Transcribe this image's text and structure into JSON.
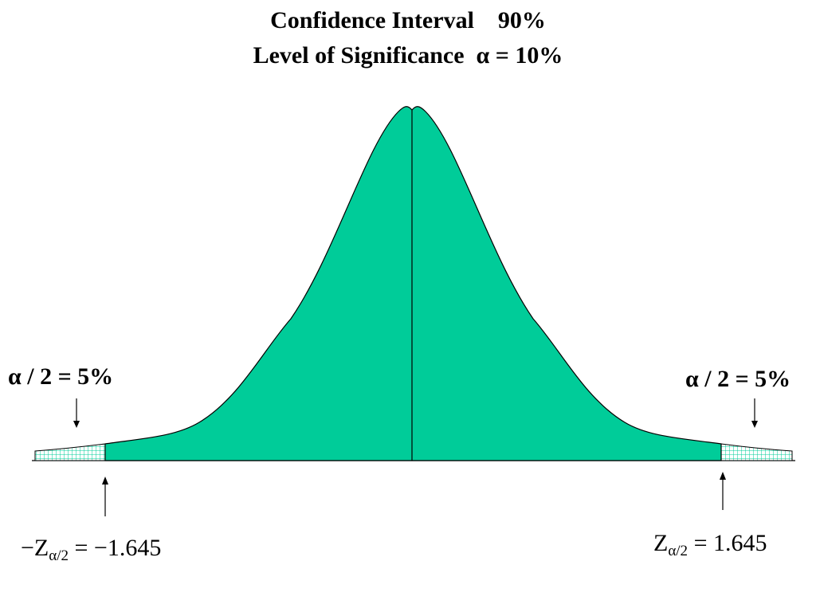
{
  "title": {
    "line1": "Confidence Interval    90%",
    "line2": "Level of Significance  α = 10%"
  },
  "left_tail": {
    "label": "α / 2 = 5%",
    "z_prefix": "−Z",
    "z_sub": "α/2",
    "z_value": " = −1.645"
  },
  "right_tail": {
    "label": "α / 2 = 5%",
    "z_prefix": "Z",
    "z_sub": "α/2",
    "z_value": " = 1.645"
  },
  "colors": {
    "curve_fill": "#00cc99",
    "tail_hatch": "#00cc99",
    "stroke": "#000000"
  }
}
